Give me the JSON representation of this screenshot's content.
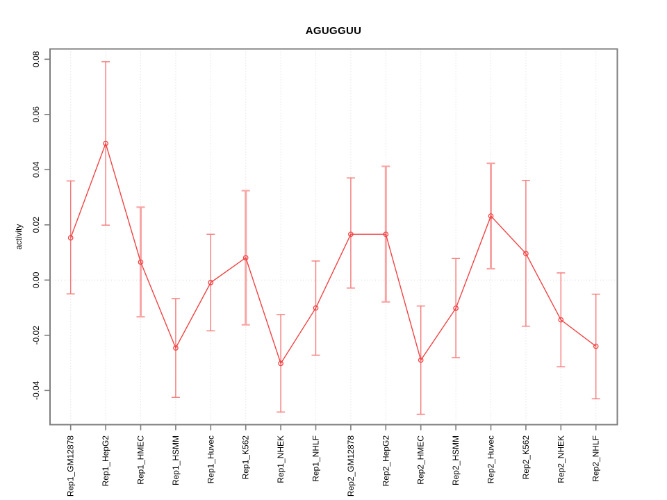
{
  "title": "AGUGGUU",
  "chart_data": {
    "type": "line",
    "title": "AGUGGUU",
    "xlabel": "",
    "ylabel": "activity",
    "categories": [
      "Rep1_GM12878",
      "Rep1_HepG2",
      "Rep1_HMEC",
      "Rep1_HSMM",
      "Rep1_Huvec",
      "Rep1_K562",
      "Rep1_NHEK",
      "Rep1_NHLF",
      "Rep2_GM12878",
      "Rep2_HepG2",
      "Rep2_HMEC",
      "Rep2_HSMM",
      "Rep2_Huvec",
      "Rep2_K562",
      "Rep2_NHEK",
      "Rep2_NHLF"
    ],
    "series": [
      {
        "name": "activity",
        "values": [
          0.0153,
          0.0495,
          0.0065,
          -0.0246,
          -0.0009,
          0.0081,
          -0.0302,
          -0.0101,
          0.0166,
          0.0166,
          -0.029,
          -0.0102,
          0.0232,
          0.0096,
          -0.0144,
          -0.024
        ],
        "error_upper": [
          0.0359,
          0.0791,
          0.0264,
          -0.0067,
          0.0166,
          0.0324,
          -0.0125,
          0.0069,
          0.037,
          0.0412,
          -0.0094,
          0.0078,
          0.0423,
          0.0361,
          0.0026,
          -0.0051
        ],
        "error_lower": [
          -0.005,
          0.0199,
          -0.0133,
          -0.0425,
          -0.0184,
          -0.0162,
          -0.0478,
          -0.0272,
          -0.0029,
          -0.0079,
          -0.0486,
          -0.0281,
          0.0041,
          -0.0167,
          -0.0314,
          -0.043
        ]
      }
    ],
    "ylim": [
      -0.052,
      0.084
    ],
    "y_ticks": [
      0.08,
      0.06,
      0.04,
      0.02,
      0.0,
      -0.02,
      -0.04
    ],
    "y_tick_labels": [
      "0.08",
      "0.06",
      "0.04",
      "0.02",
      "0.00",
      "-0.02",
      "-0.04"
    ],
    "grid": {
      "vertical_dotted_per_category": true,
      "horizontal_dotted_zero_line": true
    },
    "legend_position": "none",
    "marker": "open-circle",
    "wide_error_bar_indices": [
      2,
      5,
      9,
      12
    ],
    "colors": {
      "series_line": "#f04343",
      "marker_stroke": "#f04343",
      "error_bar": "#f57878",
      "error_bar_wide": "#f9a4a4",
      "gridline": "#d6d6d6",
      "zero_line": "#d9d9d9",
      "axis_box": "#7d7d7d",
      "tick": "#7d7d7d",
      "text": "#000000"
    }
  }
}
